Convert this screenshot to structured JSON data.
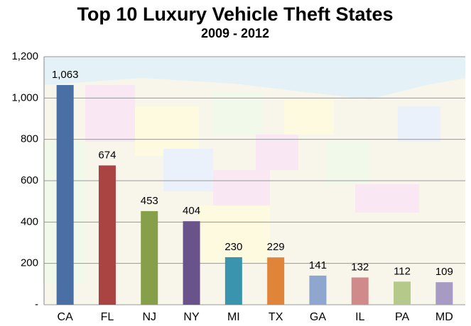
{
  "chart_data": {
    "type": "bar",
    "title": "Top 10 Luxury Vehicle Theft States",
    "subtitle": "2009 - 2012",
    "categories": [
      "CA",
      "FL",
      "NJ",
      "NY",
      "MI",
      "TX",
      "GA",
      "IL",
      "PA",
      "MD"
    ],
    "values": [
      1063,
      674,
      453,
      404,
      230,
      229,
      141,
      132,
      112,
      109
    ],
    "value_labels": [
      "1,063",
      "674",
      "453",
      "404",
      "230",
      "229",
      "141",
      "132",
      "112",
      "109"
    ],
    "colors": [
      "#4a6fa5",
      "#a94442",
      "#86a04a",
      "#6a528a",
      "#3b94ad",
      "#e0843a",
      "#8fa6cf",
      "#d08a8a",
      "#b5c98a",
      "#a79bc4"
    ],
    "ylim": [
      0,
      1200
    ],
    "yticks": [
      {
        "value": 0,
        "label": "-"
      },
      200,
      400,
      600,
      800,
      {
        "value": 1000,
        "label": "1,000"
      },
      {
        "value": 1200,
        "label": "1,200"
      }
    ],
    "grid": true
  }
}
